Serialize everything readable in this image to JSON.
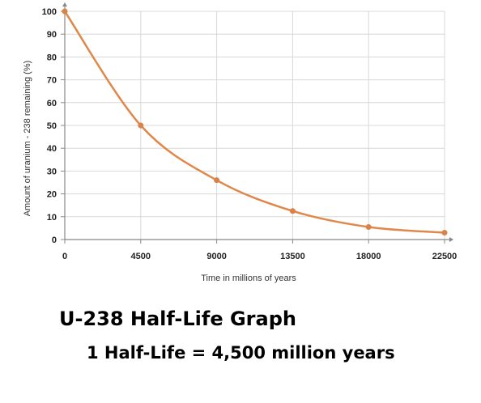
{
  "chart_data": {
    "type": "line",
    "x": [
      0,
      4500,
      9000,
      13500,
      18000,
      22500
    ],
    "series": [
      {
        "values": [
          100,
          50,
          26,
          12.5,
          5.5,
          3
        ]
      }
    ],
    "x_ticks": [
      "0",
      "4500",
      "9000",
      "13500",
      "18000",
      "22500"
    ],
    "y_ticks": [
      "0",
      "10",
      "20",
      "30",
      "40",
      "50",
      "60",
      "70",
      "80",
      "90",
      "100"
    ],
    "xlabel": "Time in millions of years",
    "ylabel": "Amount of uranium - 238 remaining   (%)",
    "xlim": [
      0,
      22500
    ],
    "ylim": [
      0,
      100
    ],
    "grid": true,
    "line_color": "#e0874a",
    "marker_color": "#d9824a",
    "grid_color": "#d8d8d8"
  },
  "caption": {
    "title": "U-238 Half-Life Graph",
    "subtitle": "1 Half-Life = 4,500 million years"
  }
}
